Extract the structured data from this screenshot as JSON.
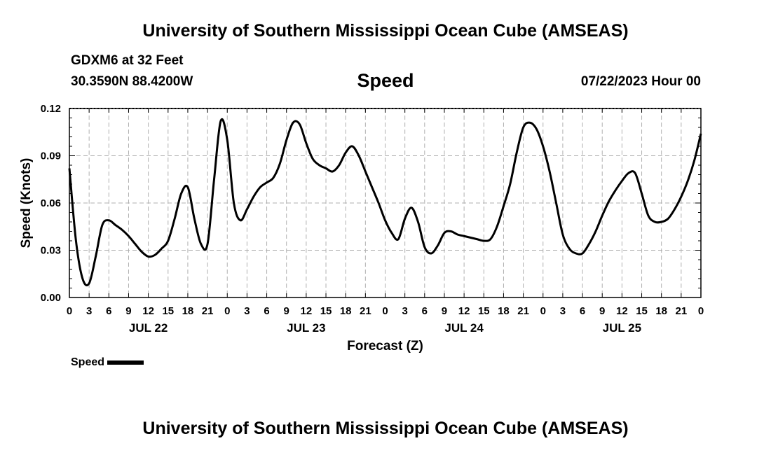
{
  "header": {
    "main_title": "University of Southern Mississippi Ocean Cube (AMSEAS)",
    "station_label": "GDXM6 at 32 Feet",
    "coordinates": "30.3590N  88.4200W",
    "chart_title": "Speed",
    "datetime": "07/22/2023 Hour 00"
  },
  "legend": {
    "label": "Speed"
  },
  "footer": {
    "title": "University of Southern Mississippi Ocean Cube (AMSEAS)"
  },
  "colors": {
    "line": "#000000",
    "grid": "#b0b0b0",
    "background": "#ffffff"
  },
  "chart_data": {
    "type": "line",
    "title": "Speed",
    "xlabel": "Forecast (Z)",
    "ylabel": "Speed (Knots)",
    "xlim": [
      0,
      96
    ],
    "ylim": [
      0,
      0.12
    ],
    "yticks": [
      "0.00",
      "0.03",
      "0.06",
      "0.09",
      "0.12"
    ],
    "ytick_values": [
      0,
      0.03,
      0.06,
      0.09,
      0.12
    ],
    "xtick_labels": [
      "0",
      "3",
      "6",
      "9",
      "12",
      "15",
      "18",
      "21",
      "0",
      "3",
      "6",
      "9",
      "12",
      "15",
      "18",
      "21",
      "0",
      "3",
      "6",
      "9",
      "12",
      "15",
      "18",
      "21",
      "0",
      "3",
      "6",
      "9",
      "12",
      "15",
      "18",
      "21",
      "0"
    ],
    "date_labels": [
      {
        "label": "JUL 22",
        "hour": 12
      },
      {
        "label": "JUL 23",
        "hour": 36
      },
      {
        "label": "JUL 24",
        "hour": 60
      },
      {
        "label": "JUL 25",
        "hour": 84
      }
    ],
    "grid": true,
    "series": [
      {
        "name": "Speed",
        "x": [
          0,
          1,
          2,
          3,
          4,
          5,
          6,
          7,
          8,
          9,
          10,
          11,
          12,
          13,
          14,
          15,
          16,
          17,
          18,
          19,
          20,
          21,
          22,
          23,
          24,
          25,
          26,
          27,
          28,
          29,
          30,
          31,
          32,
          33,
          34,
          35,
          36,
          37,
          38,
          39,
          40,
          41,
          42,
          43,
          44,
          45,
          46,
          47,
          48,
          49,
          50,
          51,
          52,
          53,
          54,
          55,
          56,
          57,
          58,
          59,
          60,
          61,
          62,
          63,
          64,
          65,
          66,
          67,
          68,
          69,
          70,
          71,
          72,
          73,
          74,
          75,
          76,
          77,
          78,
          79,
          80,
          81,
          82,
          83,
          84,
          85,
          86,
          87,
          88,
          89,
          90,
          91,
          92,
          93,
          94,
          95,
          96
        ],
        "values": [
          0.082,
          0.036,
          0.012,
          0.009,
          0.026,
          0.046,
          0.049,
          0.046,
          0.043,
          0.039,
          0.034,
          0.029,
          0.026,
          0.027,
          0.031,
          0.036,
          0.05,
          0.066,
          0.07,
          0.05,
          0.034,
          0.034,
          0.075,
          0.112,
          0.1,
          0.06,
          0.049,
          0.056,
          0.064,
          0.07,
          0.073,
          0.076,
          0.085,
          0.1,
          0.111,
          0.11,
          0.098,
          0.088,
          0.084,
          0.082,
          0.08,
          0.084,
          0.092,
          0.096,
          0.09,
          0.08,
          0.07,
          0.06,
          0.049,
          0.041,
          0.037,
          0.05,
          0.057,
          0.048,
          0.032,
          0.028,
          0.033,
          0.041,
          0.042,
          0.04,
          0.039,
          0.038,
          0.037,
          0.036,
          0.037,
          0.045,
          0.058,
          0.072,
          0.092,
          0.108,
          0.111,
          0.107,
          0.096,
          0.08,
          0.06,
          0.04,
          0.031,
          0.028,
          0.028,
          0.034,
          0.042,
          0.052,
          0.061,
          0.068,
          0.074,
          0.079,
          0.079,
          0.066,
          0.052,
          0.048,
          0.048,
          0.05,
          0.056,
          0.064,
          0.074,
          0.087,
          0.104
        ]
      }
    ]
  }
}
